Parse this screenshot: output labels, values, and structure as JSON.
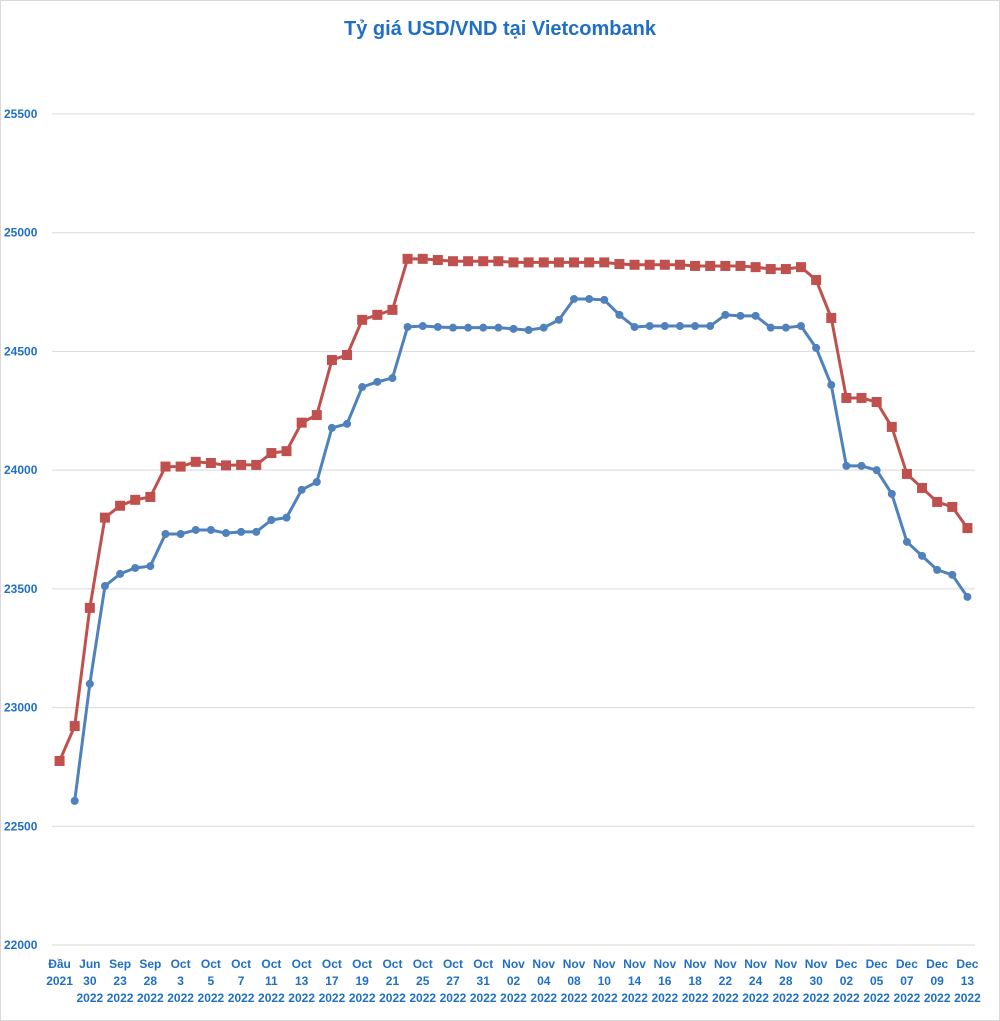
{
  "chart_data": {
    "type": "line",
    "title": "Tỷ giá USD/VND tại Vietcombank",
    "categories": [
      "Đầu 2021",
      null,
      "Jun 30 2022",
      null,
      "Sep 23 2022",
      null,
      "Sep 28 2022",
      null,
      "Oct 3 2022",
      null,
      "Oct 5 2022",
      null,
      "Oct 7 2022",
      null,
      "Oct 11 2022",
      null,
      "Oct 13 2022",
      null,
      "Oct 17 2022",
      null,
      "Oct 19 2022",
      null,
      "Oct 21 2022",
      null,
      "Oct 25 2022",
      null,
      "Oct 27 2022",
      null,
      "Oct 31 2022",
      null,
      "Nov 02 2022",
      null,
      "Nov 04 2022",
      null,
      "Nov 08 2022",
      null,
      "Nov 10 2022",
      null,
      "Nov 14 2022",
      null,
      "Nov 16 2022",
      null,
      "Nov 18 2022",
      null,
      "Nov 22 2022",
      null,
      "Nov 24 2022",
      null,
      "Nov 28 2022",
      null,
      "Nov 30 2022",
      null,
      "Dec 02 2022",
      null,
      "Dec 05 2022",
      null,
      "Dec 07 2022",
      null,
      "Dec 09 2022",
      null,
      "Dec 13 2022"
    ],
    "series": [
      {
        "color": "#4f81bd",
        "marker": "circle",
        "values": [
          null,
          22607,
          23100,
          23512,
          23563,
          23588,
          23596,
          23731,
          23731,
          23748,
          23748,
          23735,
          23740,
          23740,
          23790,
          23800,
          23917,
          23950,
          24178,
          24195,
          24350,
          24372,
          24388,
          24603,
          24607,
          24603,
          24600,
          24600,
          24600,
          24600,
          24595,
          24590,
          24600,
          24633,
          24721,
          24721,
          24717,
          24654,
          24603,
          24607,
          24607,
          24607,
          24607,
          24607,
          24654,
          24650,
          24650,
          24600,
          24600,
          24607,
          24515,
          24359,
          24018,
          24018,
          24000,
          23900,
          23698,
          23639,
          23580,
          23559,
          23466
        ]
      },
      {
        "color": "#c0504d",
        "marker": "square",
        "values": [
          22775,
          22922,
          23420,
          23800,
          23850,
          23875,
          23887,
          24015,
          24015,
          24035,
          24030,
          24020,
          24022,
          24022,
          24072,
          24080,
          24200,
          24232,
          24464,
          24485,
          24633,
          24654,
          24675,
          24890,
          24890,
          24885,
          24880,
          24880,
          24880,
          24880,
          24875,
          24875,
          24875,
          24875,
          24875,
          24875,
          24875,
          24868,
          24865,
          24865,
          24865,
          24865,
          24860,
          24860,
          24860,
          24860,
          24855,
          24847,
          24847,
          24855,
          24801,
          24641,
          24304,
          24304,
          24287,
          24182,
          23984,
          23925,
          23866,
          23845,
          23756
        ]
      }
    ],
    "ylim": [
      22000,
      25500
    ],
    "yticks": [
      22000,
      22500,
      23000,
      23500,
      24000,
      24500,
      25000,
      25500
    ],
    "grid": true
  }
}
